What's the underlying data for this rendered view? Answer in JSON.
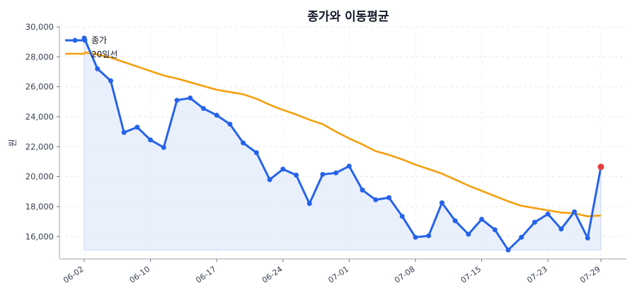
{
  "chart_data": {
    "type": "line",
    "title": "종가와 이동평균",
    "ylabel": "원",
    "ylim": [
      14500,
      30000
    ],
    "y_ticks": [
      16000,
      18000,
      20000,
      22000,
      24000,
      26000,
      28000,
      30000
    ],
    "y_tick_labels": [
      "16,000",
      "18,000",
      "20,000",
      "22,000",
      "24,000",
      "26,000",
      "28,000",
      "30,000"
    ],
    "x_tick_labels": [
      "06-02",
      "06-10",
      "06-17",
      "06-24",
      "07-01",
      "07-08",
      "07-15",
      "07-23",
      "07-29"
    ],
    "x_tick_indices": [
      0,
      5,
      10,
      15,
      20,
      25,
      30,
      35,
      39
    ],
    "grid": true,
    "legend_position": "top-left",
    "colors": {
      "close": "#2563eb",
      "ma20": "#f59e0b",
      "fill": "#e8eefb",
      "last_point": "#e53e3e"
    },
    "series": [
      {
        "name": "종가",
        "values": [
          29250,
          27200,
          26400,
          22950,
          23300,
          22450,
          21950,
          25100,
          25250,
          24550,
          24100,
          23500,
          22250,
          21600,
          19800,
          20500,
          20100,
          18200,
          20150,
          20250,
          20700,
          19100,
          18450,
          18600,
          17350,
          15950,
          16050,
          18250,
          17050,
          16150,
          17150,
          16450,
          15100,
          15950,
          16950,
          17500,
          16500,
          17650,
          15900,
          20650
        ]
      },
      {
        "name": "20일선",
        "values": [
          28300,
          28150,
          27950,
          27650,
          27350,
          27050,
          26750,
          26550,
          26300,
          26050,
          25800,
          25650,
          25500,
          25200,
          24800,
          24450,
          24150,
          23800,
          23500,
          23000,
          22550,
          22150,
          21700,
          21450,
          21150,
          20800,
          20500,
          20200,
          19800,
          19400,
          19050,
          18700,
          18350,
          18050,
          17900,
          17750,
          17600,
          17550,
          17350,
          17400
        ]
      }
    ]
  }
}
